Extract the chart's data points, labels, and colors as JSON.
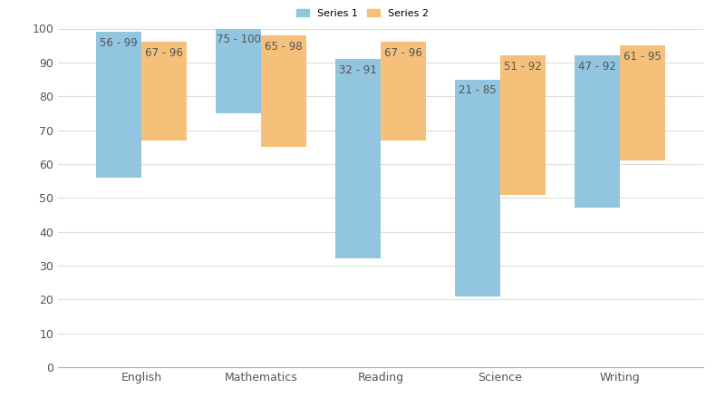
{
  "categories": [
    "English",
    "Mathematics",
    "Reading",
    "Science",
    "Writing"
  ],
  "series1": {
    "label": "Series 1",
    "color": "#92C5E0",
    "ranges": [
      [
        56,
        99
      ],
      [
        75,
        100
      ],
      [
        32,
        91
      ],
      [
        21,
        85
      ],
      [
        47,
        92
      ]
    ]
  },
  "series2": {
    "label": "Series 2",
    "color": "#F5C07A",
    "ranges": [
      [
        67,
        96
      ],
      [
        65,
        98
      ],
      [
        67,
        96
      ],
      [
        51,
        92
      ],
      [
        61,
        95
      ]
    ]
  },
  "ylim": [
    0,
    100
  ],
  "yticks": [
    0,
    10,
    20,
    30,
    40,
    50,
    60,
    70,
    80,
    90,
    100
  ],
  "background_color": "#FFFFFF",
  "grid_color": "#DDDDDD",
  "bar_width": 0.38,
  "label_fontsize": 8.5,
  "tick_fontsize": 9,
  "figsize": [
    8.0,
    4.5
  ],
  "dpi": 100
}
